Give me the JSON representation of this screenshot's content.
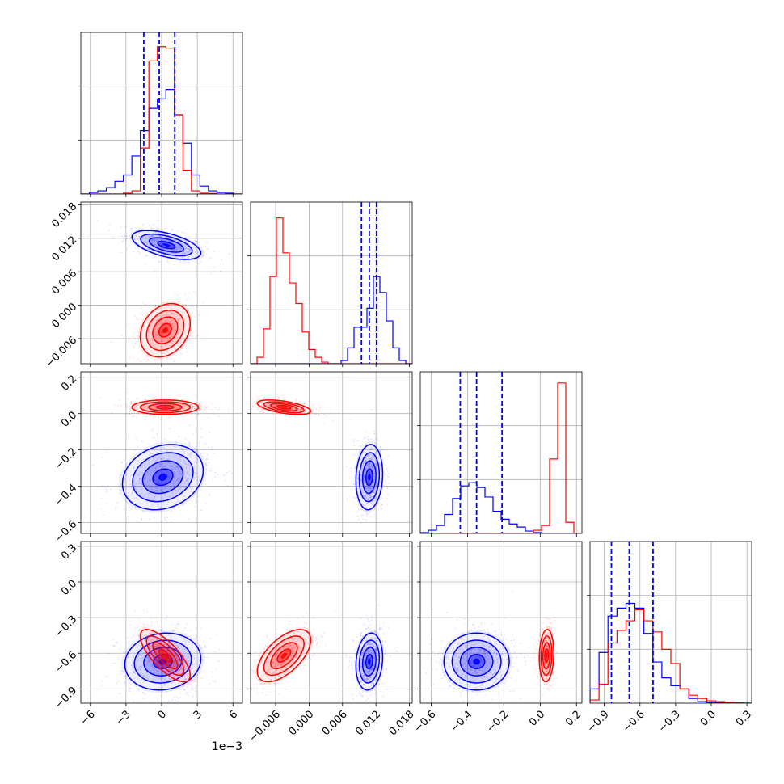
{
  "chart_data": {
    "type": "corner",
    "grid": true,
    "colors": {
      "series_a": "#0000ff",
      "series_b": "#ff0000"
    },
    "series": [
      {
        "color": "#0000ff"
      },
      {
        "color": "#ff0000"
      }
    ],
    "parameters": [
      {
        "range": [
          -6.8,
          6.8
        ],
        "ticks": [
          "−6",
          "−3",
          "0",
          "3",
          "6"
        ],
        "tick_values": [
          -6,
          -3,
          0,
          3,
          6
        ],
        "offset_label": "1e−3",
        "quantiles_series_a": [
          -1.5,
          -0.2,
          1.1
        ]
      },
      {
        "range": [
          -0.0105,
          0.0185
        ],
        "ticks": [
          "−0.006",
          "0.000",
          "0.006",
          "0.012",
          "0.018"
        ],
        "tick_values": [
          -0.006,
          0.0,
          0.006,
          0.012,
          0.018
        ],
        "quantiles_series_a": [
          0.0094,
          0.0108,
          0.0121
        ]
      },
      {
        "range": [
          -0.66,
          0.23
        ],
        "ticks": [
          "−0.6",
          "−0.4",
          "−0.2",
          "0.0",
          "0.2"
        ],
        "tick_values": [
          -0.6,
          -0.4,
          -0.2,
          0.0,
          0.2
        ],
        "quantiles_series_a": [
          -0.44,
          -0.35,
          -0.21
        ]
      },
      {
        "range": [
          -1.02,
          0.34
        ],
        "ticks": [
          "−0.9",
          "−0.6",
          "−0.3",
          "0.0",
          "0.3"
        ],
        "tick_values": [
          -0.9,
          -0.6,
          -0.3,
          0.0,
          0.3
        ],
        "quantiles_series_a": [
          -0.84,
          -0.69,
          -0.49
        ]
      }
    ],
    "histograms": [
      {
        "series_a": [
          0,
          0.01,
          0.02,
          0.04,
          0.08,
          0.12,
          0.24,
          0.4,
          0.54,
          0.6,
          0.66,
          0.5,
          0.32,
          0.12,
          0.05,
          0.02,
          0.01,
          0.005,
          0
        ],
        "series_b": [
          0,
          0,
          0,
          0,
          0,
          0.005,
          0.02,
          0.29,
          0.84,
          0.93,
          0.92,
          0.5,
          0.15,
          0.02,
          0.005,
          0.003,
          0,
          0,
          0
        ]
      },
      {
        "series_a": [
          0,
          0,
          0,
          0,
          0,
          0,
          0,
          0,
          0,
          0,
          0,
          0,
          0,
          0,
          0.02,
          0.1,
          0.23,
          0.23,
          0.35,
          0.55,
          0.45,
          0.27,
          0.1,
          0.02,
          0
        ],
        "series_b": [
          0,
          0.04,
          0.22,
          0.55,
          0.92,
          0.7,
          0.51,
          0.38,
          0.2,
          0.09,
          0.04,
          0.01,
          0,
          0,
          0,
          0,
          0,
          0,
          0,
          0,
          0,
          0,
          0,
          0,
          0
        ]
      },
      {
        "series_a": [
          0.005,
          0.02,
          0.05,
          0.12,
          0.22,
          0.3,
          0.32,
          0.29,
          0.23,
          0.14,
          0.09,
          0.06,
          0.04,
          0.015,
          0.005,
          0,
          0,
          0,
          0,
          0
        ],
        "series_b": [
          0,
          0,
          0,
          0,
          0,
          0,
          0,
          0,
          0,
          0,
          0,
          0,
          0,
          0,
          0.02,
          0.05,
          0.47,
          0.95,
          0.07,
          0
        ]
      },
      {
        "series_a": [
          0.09,
          0.32,
          0.55,
          0.6,
          0.63,
          0.6,
          0.44,
          0.26,
          0.16,
          0.11,
          0.09,
          0.03,
          0.01,
          0.005,
          0.003,
          0,
          0,
          0
        ],
        "series_b": [
          0.02,
          0.12,
          0.38,
          0.46,
          0.52,
          0.59,
          0.52,
          0.45,
          0.34,
          0.25,
          0.09,
          0.05,
          0.03,
          0.015,
          0.01,
          0.005,
          0.002,
          0
        ]
      }
    ],
    "joint_distributions": [
      {
        "row": 1,
        "col": 0,
        "series_a": {
          "mean": [
            0.4,
            0.0108
          ],
          "sd": [
            1.45,
            0.0013
          ],
          "rho": -0.55
        },
        "series_b": {
          "mean": [
            0.3,
            -0.0045
          ],
          "sd": [
            1.05,
            0.0024
          ],
          "rho": 0.25
        }
      },
      {
        "row": 2,
        "col": 0,
        "series_a": {
          "mean": [
            0.1,
            -0.35
          ],
          "sd": [
            1.7,
            0.09
          ],
          "rho": 0.2
        },
        "series_b": {
          "mean": [
            0.3,
            0.035
          ],
          "sd": [
            1.4,
            0.02
          ],
          "rho": 0.0
        }
      },
      {
        "row": 2,
        "col": 1,
        "series_a": {
          "mean": [
            0.0108,
            -0.35
          ],
          "sd": [
            0.0012,
            0.09
          ],
          "rho": 0.1
        },
        "series_b": {
          "mean": [
            -0.0045,
            0.035
          ],
          "sd": [
            0.0024,
            0.02
          ],
          "rho": -0.55
        }
      },
      {
        "row": 3,
        "col": 0,
        "series_a": {
          "mean": [
            0.1,
            -0.67
          ],
          "sd": [
            1.6,
            0.12
          ],
          "rho": 0.1
        },
        "series_b": {
          "mean": [
            0.3,
            -0.62
          ],
          "sd": [
            1.05,
            0.11
          ],
          "rho": -0.75
        }
      },
      {
        "row": 3,
        "col": 1,
        "series_a": {
          "mean": [
            0.0108,
            -0.67
          ],
          "sd": [
            0.0012,
            0.12
          ],
          "rho": 0.15
        },
        "series_b": {
          "mean": [
            -0.0045,
            -0.62
          ],
          "sd": [
            0.0024,
            0.11
          ],
          "rho": 0.6
        }
      },
      {
        "row": 3,
        "col": 2,
        "series_a": {
          "mean": [
            -0.35,
            -0.67
          ],
          "sd": [
            0.09,
            0.12
          ],
          "rho": 0.0
        },
        "series_b": {
          "mean": [
            0.035,
            -0.62
          ],
          "sd": [
            0.02,
            0.11
          ],
          "rho": 0.1
        }
      }
    ],
    "contour_levels_sigma": [
      0.5,
      1.0,
      1.5,
      2.0
    ]
  }
}
